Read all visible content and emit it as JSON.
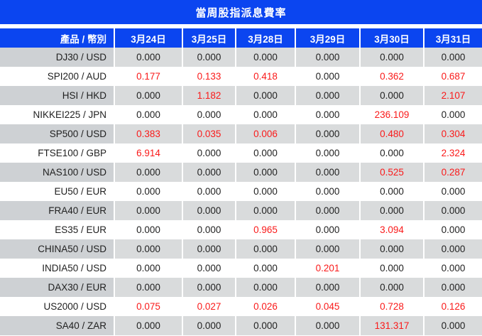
{
  "title": "當周股指派息費率",
  "colors": {
    "accent_blue": "#0b45f0",
    "red_value": "#fa1a1a",
    "black_value": "#222222",
    "gray_row_label": "#ced1d4",
    "gray_row_value": "#d9dbdc",
    "white_row": "#ffffff"
  },
  "table": {
    "columns": [
      "產品 / 幣別",
      "3月24日",
      "3月25日",
      "3月28日",
      "3月29日",
      "3月30日",
      "3月31日"
    ],
    "rows": [
      {
        "product": "DJ30 / USD",
        "values": [
          "0.000",
          "0.000",
          "0.000",
          "0.000",
          "0.000",
          "0.000"
        ]
      },
      {
        "product": "SPI200 / AUD",
        "values": [
          "0.177",
          "0.133",
          "0.418",
          "0.000",
          "0.362",
          "0.687"
        ]
      },
      {
        "product": "HSI / HKD",
        "values": [
          "0.000",
          "1.182",
          "0.000",
          "0.000",
          "0.000",
          "2.107"
        ]
      },
      {
        "product": "NIKKEI225 / JPN",
        "values": [
          "0.000",
          "0.000",
          "0.000",
          "0.000",
          "236.109",
          "0.000"
        ]
      },
      {
        "product": "SP500 / USD",
        "values": [
          "0.383",
          "0.035",
          "0.006",
          "0.000",
          "0.480",
          "0.304"
        ]
      },
      {
        "product": "FTSE100 / GBP",
        "values": [
          "6.914",
          "0.000",
          "0.000",
          "0.000",
          "0.000",
          "2.324"
        ]
      },
      {
        "product": "NAS100 / USD",
        "values": [
          "0.000",
          "0.000",
          "0.000",
          "0.000",
          "0.525",
          "0.287"
        ]
      },
      {
        "product": "EU50 / EUR",
        "values": [
          "0.000",
          "0.000",
          "0.000",
          "0.000",
          "0.000",
          "0.000"
        ]
      },
      {
        "product": "FRA40 / EUR",
        "values": [
          "0.000",
          "0.000",
          "0.000",
          "0.000",
          "0.000",
          "0.000"
        ]
      },
      {
        "product": "ES35 / EUR",
        "values": [
          "0.000",
          "0.000",
          "0.965",
          "0.000",
          "3.094",
          "0.000"
        ]
      },
      {
        "product": "CHINA50 / USD",
        "values": [
          "0.000",
          "0.000",
          "0.000",
          "0.000",
          "0.000",
          "0.000"
        ]
      },
      {
        "product": "INDIA50 / USD",
        "values": [
          "0.000",
          "0.000",
          "0.000",
          "0.201",
          "0.000",
          "0.000"
        ]
      },
      {
        "product": "DAX30 / EUR",
        "values": [
          "0.000",
          "0.000",
          "0.000",
          "0.000",
          "0.000",
          "0.000"
        ]
      },
      {
        "product": "US2000 / USD",
        "values": [
          "0.075",
          "0.027",
          "0.026",
          "0.045",
          "0.728",
          "0.126"
        ]
      },
      {
        "product": "SA40 / ZAR",
        "values": [
          "0.000",
          "0.000",
          "0.000",
          "0.000",
          "131.317",
          "0.000"
        ]
      }
    ]
  }
}
